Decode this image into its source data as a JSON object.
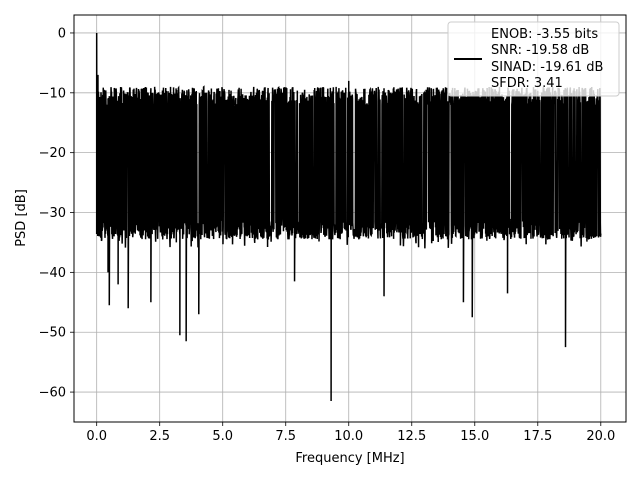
{
  "chart_data": {
    "type": "line",
    "title": "",
    "xlabel": "Frequency [MHz]",
    "ylabel": "PSD [dB]",
    "xlim": [
      -0.9,
      21.0
    ],
    "ylim": [
      -65,
      3
    ],
    "x_ticks": [
      0.0,
      2.5,
      5.0,
      7.5,
      10.0,
      12.5,
      15.0,
      17.5,
      20.0
    ],
    "x_tick_labels": [
      "0.0",
      "2.5",
      "5.0",
      "7.5",
      "10.0",
      "12.5",
      "15.0",
      "17.5",
      "20.0"
    ],
    "y_ticks": [
      0,
      -10,
      -20,
      -30,
      -40,
      -50,
      -60
    ],
    "y_tick_labels": [
      "0",
      "−10",
      "−20",
      "−30",
      "−40",
      "−50",
      "−60"
    ],
    "grid": true,
    "legend_position": "top-right",
    "legend": [
      "ENOB: -3.55 bits",
      "SNR: -19.58 dB",
      "SINAD: -19.61 dB",
      "SFDR: 3.41"
    ],
    "series": [
      {
        "color": "#000000",
        "description": "dense noise PSD spanning 0 to 20 MHz, mostly between about -33 dB and -11 dB, peak 0 dB at 0 MHz",
        "x_range": [
          0.0,
          20.0
        ],
        "typical_low": -33,
        "typical_high": -11,
        "peaks": [
          {
            "x": 0.0,
            "y": 0
          },
          {
            "x": 0.05,
            "y": -7
          },
          {
            "x": 10.0,
            "y": -8
          },
          {
            "x": 2.3,
            "y": -9
          },
          {
            "x": 9.0,
            "y": -9.5
          }
        ],
        "dips": [
          {
            "x": 0.45,
            "y": -40
          },
          {
            "x": 0.5,
            "y": -45.5
          },
          {
            "x": 0.85,
            "y": -42
          },
          {
            "x": 1.25,
            "y": -46
          },
          {
            "x": 2.15,
            "y": -45
          },
          {
            "x": 3.3,
            "y": -50.5
          },
          {
            "x": 3.55,
            "y": -51.5
          },
          {
            "x": 4.05,
            "y": -47
          },
          {
            "x": 7.85,
            "y": -41.5
          },
          {
            "x": 9.3,
            "y": -61.5
          },
          {
            "x": 11.4,
            "y": -44
          },
          {
            "x": 14.55,
            "y": -45
          },
          {
            "x": 14.9,
            "y": -47.5
          },
          {
            "x": 16.3,
            "y": -43.5
          },
          {
            "x": 18.6,
            "y": -52.5
          }
        ]
      }
    ]
  }
}
